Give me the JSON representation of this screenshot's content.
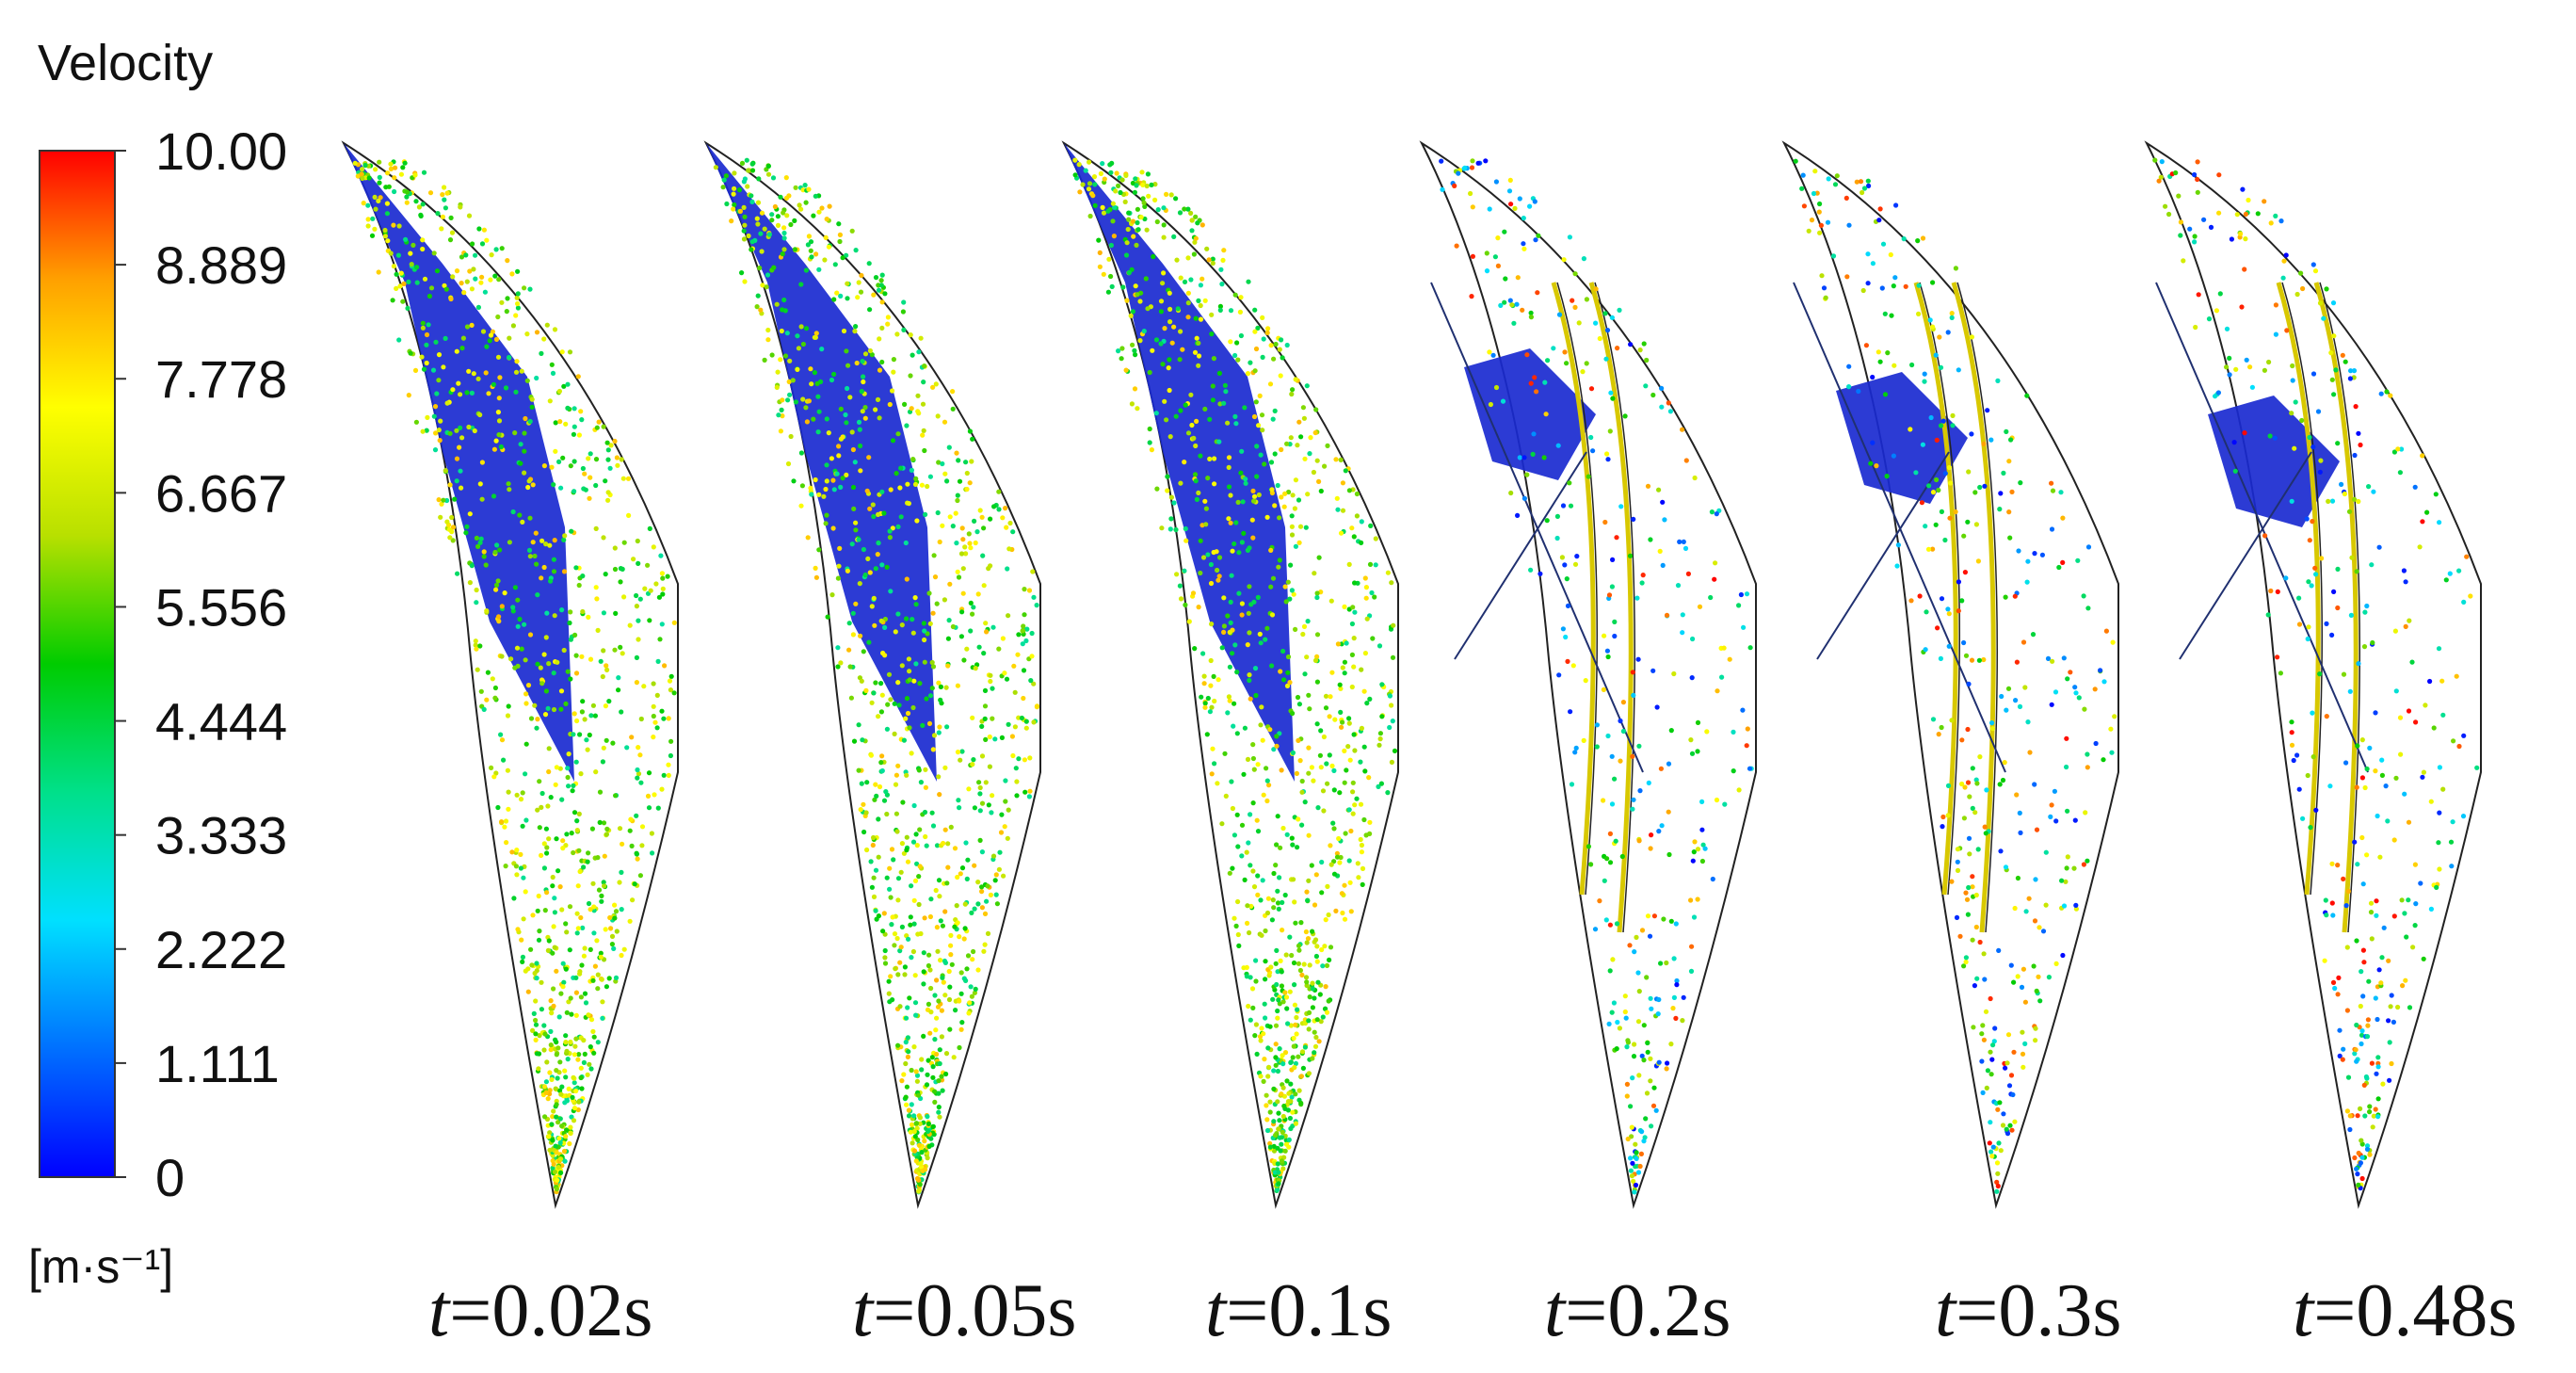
{
  "legend": {
    "title": "Velocity",
    "unit": "[m·s⁻¹]",
    "ticks": [
      "10.00",
      "8.889",
      "7.778",
      "6.667",
      "5.556",
      "4.444",
      "3.333",
      "2.222",
      "1.111",
      "0"
    ],
    "min": 0,
    "max": 10,
    "colors": [
      "#0000ff",
      "#0070ff",
      "#00e0ff",
      "#00e08a",
      "#00cc00",
      "#b8e000",
      "#ffff00",
      "#ffa000",
      "#ff0000"
    ]
  },
  "panels": [
    {
      "time_var": "t",
      "time_value": "=0.02s"
    },
    {
      "time_var": "t",
      "time_value": "=0.05s"
    },
    {
      "time_var": "t",
      "time_value": "=0.1s"
    },
    {
      "time_var": "t",
      "time_value": "=0.2s"
    },
    {
      "time_var": "t",
      "time_value": "=0.3s"
    },
    {
      "time_var": "t",
      "time_value": "=0.48s"
    }
  ]
}
